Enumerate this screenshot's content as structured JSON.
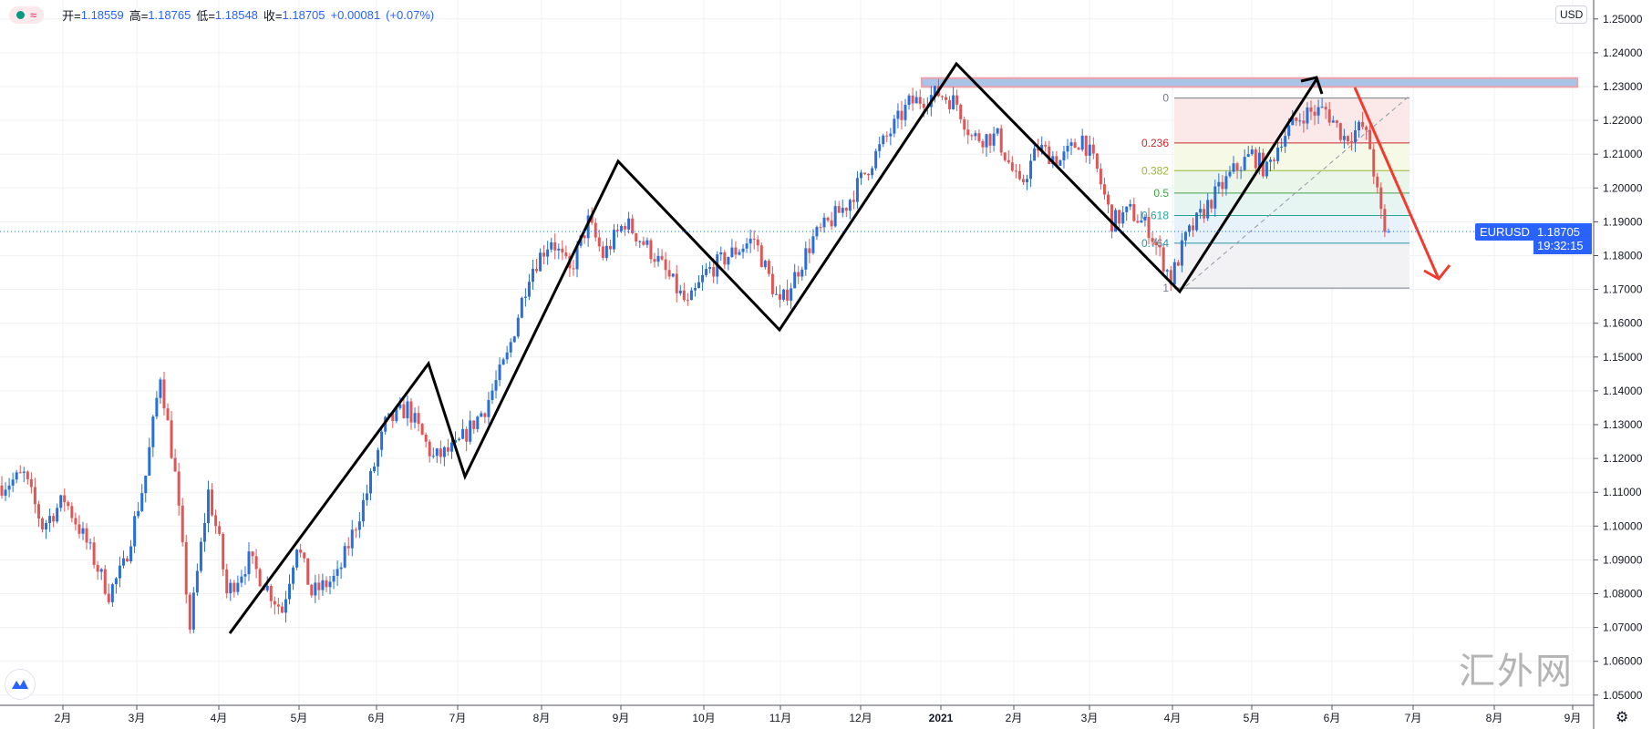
{
  "legend": {
    "open_label": "开=",
    "open": "1.18559",
    "high_label": "高=",
    "high": "1.18765",
    "low_label": "低=",
    "low": "1.18548",
    "close_label": "收=",
    "close": "1.18705",
    "change": "+0.00081",
    "change_pct": "(+0.07%)",
    "wave_icon": "≈"
  },
  "currency_button": "USD",
  "symbol": "EURUSD",
  "last_price": "1.18705",
  "countdown": "19:32:15",
  "watermark": "汇外网",
  "colors": {
    "up": "#2a6fd6",
    "down": "#e05656",
    "accent": "#2962ff"
  },
  "price_axis": [
    "1.25000",
    "1.24000",
    "1.23000",
    "1.22000",
    "1.21000",
    "1.20000",
    "1.19000",
    "1.18000",
    "1.17000",
    "1.16000",
    "1.15000",
    "1.14000",
    "1.13000",
    "1.12000",
    "1.11000",
    "1.10000",
    "1.09000",
    "1.08000",
    "1.07000",
    "1.06000",
    "1.05000"
  ],
  "time_axis": [
    "2月",
    "3月",
    "4月",
    "5月",
    "6月",
    "7月",
    "8月",
    "9月",
    "10月",
    "11月",
    "12月",
    "2021",
    "2月",
    "3月",
    "4月",
    "5月",
    "6月",
    "7月",
    "8月",
    "9月"
  ],
  "fib_levels": [
    {
      "label": "0",
      "ratio": 0,
      "color": "#787b86"
    },
    {
      "label": "0.236",
      "ratio": 0.236,
      "color": "#c62828"
    },
    {
      "label": "0.382",
      "ratio": 0.382,
      "color": "#9cb535"
    },
    {
      "label": "0.5",
      "ratio": 0.5,
      "color": "#43a047"
    },
    {
      "label": "0.618",
      "ratio": 0.618,
      "color": "#26a69a"
    },
    {
      "label": "0.764",
      "ratio": 0.764,
      "color": "#2196a6"
    },
    {
      "label": "1",
      "ratio": 1,
      "color": "#787b86"
    }
  ],
  "fib_range": {
    "high": 1.2266,
    "low": 1.1704
  },
  "resistance_zone": {
    "top": 1.2325,
    "bottom": 1.2299
  },
  "price_path": [
    [
      0,
      1.112
    ],
    [
      6,
      1.115
    ],
    [
      11,
      1.1
    ],
    [
      17,
      1.108
    ],
    [
      23,
      1.095
    ],
    [
      29,
      1.08
    ],
    [
      33,
      1.088
    ],
    [
      39,
      1.115
    ],
    [
      43,
      1.145
    ],
    [
      47,
      1.115
    ],
    [
      51,
      1.07
    ],
    [
      56,
      1.11
    ],
    [
      59,
      1.095
    ],
    [
      61,
      1.08
    ],
    [
      67,
      1.09
    ],
    [
      76,
      1.075
    ],
    [
      80,
      1.095
    ],
    [
      84,
      1.08
    ],
    [
      91,
      1.085
    ],
    [
      99,
      1.11
    ],
    [
      104,
      1.13
    ],
    [
      110,
      1.135
    ],
    [
      117,
      1.12
    ],
    [
      123,
      1.123
    ],
    [
      131,
      1.135
    ],
    [
      137,
      1.15
    ],
    [
      143,
      1.175
    ],
    [
      149,
      1.185
    ],
    [
      154,
      1.175
    ],
    [
      159,
      1.19
    ],
    [
      163,
      1.18
    ],
    [
      169,
      1.19
    ],
    [
      177,
      1.18
    ],
    [
      186,
      1.165
    ],
    [
      191,
      1.175
    ],
    [
      197,
      1.18
    ],
    [
      204,
      1.185
    ],
    [
      211,
      1.165
    ],
    [
      220,
      1.185
    ],
    [
      229,
      1.195
    ],
    [
      237,
      1.21
    ],
    [
      246,
      1.225
    ],
    [
      254,
      1.228
    ],
    [
      259,
      1.225
    ],
    [
      263,
      1.215
    ],
    [
      270,
      1.215
    ],
    [
      276,
      1.2
    ],
    [
      281,
      1.212
    ],
    [
      287,
      1.208
    ],
    [
      293,
      1.215
    ],
    [
      297,
      1.205
    ],
    [
      301,
      1.19
    ],
    [
      306,
      1.193
    ],
    [
      311,
      1.188
    ],
    [
      317,
      1.173
    ],
    [
      321,
      1.185
    ],
    [
      327,
      1.195
    ],
    [
      334,
      1.205
    ],
    [
      339,
      1.21
    ],
    [
      343,
      1.205
    ],
    [
      347,
      1.215
    ],
    [
      353,
      1.222
    ],
    [
      359,
      1.223
    ],
    [
      364,
      1.215
    ],
    [
      369,
      1.218
    ],
    [
      371,
      1.212
    ],
    [
      373,
      1.198
    ],
    [
      375,
      1.186
    ],
    [
      376,
      1.18705
    ]
  ]
}
